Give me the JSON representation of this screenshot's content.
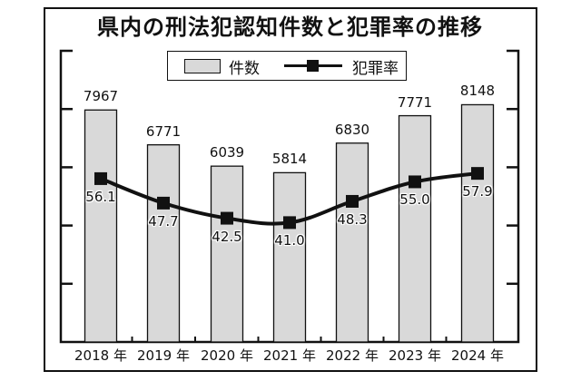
{
  "chart_data": {
    "type": "bar+line",
    "title": "県内の刑法犯認知件数と犯罪率の推移",
    "categories": [
      "2018 年",
      "2019 年",
      "2020 年",
      "2021 年",
      "2022 年",
      "2023 年",
      "2024 年"
    ],
    "series": [
      {
        "name": "件数",
        "type": "bar",
        "axis": "left",
        "color": "#d9d9d9",
        "values": [
          7967,
          6771,
          6039,
          5814,
          6830,
          7771,
          8148
        ]
      },
      {
        "name": "犯罪率",
        "type": "line",
        "axis": "right",
        "color": "#111111",
        "values": [
          56.1,
          47.7,
          42.5,
          41.0,
          48.3,
          55.0,
          57.9
        ]
      }
    ],
    "value_labels": {
      "bars": [
        "7967",
        "6771",
        "6039",
        "5814",
        "6830",
        "7771",
        "8148"
      ],
      "line": [
        "56.1",
        "47.7",
        "42.5",
        "41.0",
        "48.3",
        "55.0",
        "57.9"
      ]
    },
    "xlabel": "",
    "ylabel": "",
    "ylim_left": [
      0,
      10000
    ],
    "ylim_right": [
      0,
      100
    ],
    "tick_labels_shown": false,
    "grid": false,
    "legend_position": "top-center"
  },
  "legend": {
    "bar_label": "件数",
    "line_label": "犯罪率"
  }
}
